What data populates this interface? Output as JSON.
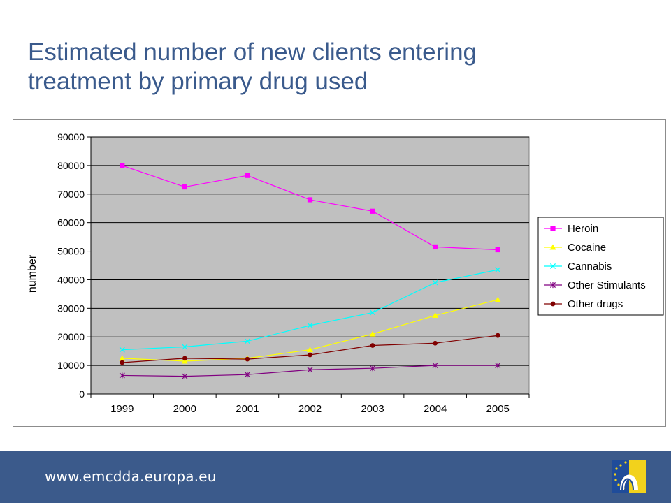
{
  "slide": {
    "title_line1": "Estimated number of new clients entering",
    "title_line2": "treatment by primary drug used"
  },
  "footer": {
    "url": "www.emcdda.europa.eu",
    "logo_icon": "emcdda-logo-icon"
  },
  "chart_data": {
    "type": "line",
    "title": "",
    "xlabel": "",
    "ylabel": "number",
    "categories": [
      "1999",
      "2000",
      "2001",
      "2002",
      "2003",
      "2004",
      "2005"
    ],
    "ylim": [
      0,
      90000
    ],
    "yticks": [
      "0",
      "10000",
      "20000",
      "30000",
      "40000",
      "50000",
      "60000",
      "70000",
      "80000",
      "90000"
    ],
    "grid": true,
    "legend_position": "right",
    "plot_background": "#c0c0c0",
    "series": [
      {
        "name": "Heroin",
        "color": "#ff00ff",
        "marker": "square",
        "values": [
          80000,
          72500,
          76500,
          68000,
          64000,
          51500,
          50500
        ]
      },
      {
        "name": "Cocaine",
        "color": "#ffff00",
        "marker": "triangle",
        "values": [
          12500,
          11500,
          12500,
          15500,
          21000,
          27500,
          33000
        ]
      },
      {
        "name": "Cannabis",
        "color": "#00ffff",
        "marker": "x",
        "values": [
          15500,
          16500,
          18500,
          24000,
          28500,
          39000,
          43500
        ]
      },
      {
        "name": "Other Stimulants",
        "color": "#800080",
        "marker": "asterisk",
        "values": [
          6500,
          6200,
          6800,
          8500,
          9000,
          10000,
          10000
        ]
      },
      {
        "name": "Other drugs",
        "color": "#800000",
        "marker": "circle",
        "values": [
          11000,
          12500,
          12200,
          13700,
          17000,
          17800,
          20500
        ]
      }
    ]
  }
}
